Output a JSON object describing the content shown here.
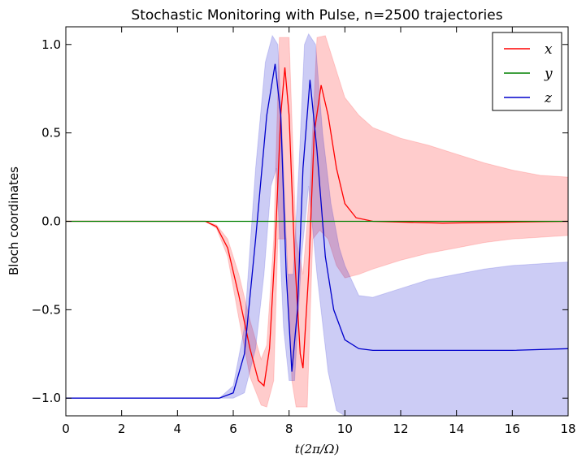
{
  "chart_data": {
    "type": "line",
    "title": "Stochastic Monitoring with Pulse, n=2500 trajectories",
    "xlabel": "t(2π/Ω)",
    "ylabel": "Bloch coordinates",
    "xlim": [
      0,
      18
    ],
    "ylim": [
      -1.1,
      1.1
    ],
    "x_ticks": [
      "0",
      "2",
      "4",
      "6",
      "8",
      "10",
      "12",
      "14",
      "16",
      "18"
    ],
    "y_ticks": [
      "1.0",
      "0.5",
      "0.0",
      "−0.5",
      "−1.0"
    ],
    "legend_position": "top-right",
    "series": [
      {
        "name": "x",
        "color": "#ff0000",
        "points": [
          [
            0,
            0.0
          ],
          [
            5.0,
            0.0
          ],
          [
            5.4,
            -0.03
          ],
          [
            5.8,
            -0.15
          ],
          [
            6.2,
            -0.42
          ],
          [
            6.6,
            -0.72
          ],
          [
            6.9,
            -0.9
          ],
          [
            7.1,
            -0.93
          ],
          [
            7.3,
            -0.72
          ],
          [
            7.5,
            -0.15
          ],
          [
            7.7,
            0.6
          ],
          [
            7.85,
            0.87
          ],
          [
            8.0,
            0.6
          ],
          [
            8.2,
            -0.2
          ],
          [
            8.4,
            -0.75
          ],
          [
            8.5,
            -0.83
          ],
          [
            8.7,
            -0.3
          ],
          [
            8.9,
            0.5
          ],
          [
            9.15,
            0.77
          ],
          [
            9.4,
            0.6
          ],
          [
            9.7,
            0.3
          ],
          [
            10.0,
            0.1
          ],
          [
            10.4,
            0.02
          ],
          [
            11.0,
            0.0
          ],
          [
            13.5,
            -0.01
          ],
          [
            18,
            0.0
          ]
        ],
        "band_upper": [
          [
            0,
            0.0
          ],
          [
            5.0,
            0.0
          ],
          [
            5.4,
            -0.02
          ],
          [
            5.8,
            -0.1
          ],
          [
            6.2,
            -0.3
          ],
          [
            6.6,
            -0.56
          ],
          [
            7.0,
            -0.78
          ],
          [
            7.2,
            -0.7
          ],
          [
            7.45,
            -0.1
          ],
          [
            7.65,
            1.04
          ],
          [
            8.0,
            1.04
          ],
          [
            8.25,
            -0.1
          ],
          [
            8.5,
            -0.3
          ],
          [
            8.75,
            0.2
          ],
          [
            9.0,
            1.04
          ],
          [
            9.3,
            1.05
          ],
          [
            9.7,
            0.85
          ],
          [
            10.0,
            0.7
          ],
          [
            10.5,
            0.6
          ],
          [
            11.0,
            0.53
          ],
          [
            12.0,
            0.47
          ],
          [
            13.0,
            0.43
          ],
          [
            14.0,
            0.38
          ],
          [
            15.0,
            0.33
          ],
          [
            16.0,
            0.29
          ],
          [
            17.0,
            0.26
          ],
          [
            18,
            0.25
          ]
        ],
        "band_lower": [
          [
            0,
            0.0
          ],
          [
            5.0,
            0.0
          ],
          [
            5.4,
            -0.04
          ],
          [
            5.8,
            -0.2
          ],
          [
            6.2,
            -0.55
          ],
          [
            6.6,
            -0.88
          ],
          [
            7.0,
            -1.04
          ],
          [
            7.2,
            -1.05
          ],
          [
            7.45,
            -0.9
          ],
          [
            7.6,
            -0.1
          ],
          [
            7.9,
            -0.1
          ],
          [
            8.1,
            -0.9
          ],
          [
            8.25,
            -1.05
          ],
          [
            8.65,
            -1.05
          ],
          [
            8.85,
            -0.1
          ],
          [
            9.1,
            -0.05
          ],
          [
            9.4,
            -0.1
          ],
          [
            9.7,
            -0.25
          ],
          [
            10.0,
            -0.32
          ],
          [
            10.5,
            -0.3
          ],
          [
            11.0,
            -0.27
          ],
          [
            12.0,
            -0.22
          ],
          [
            13.0,
            -0.18
          ],
          [
            14.0,
            -0.15
          ],
          [
            15.0,
            -0.12
          ],
          [
            16.0,
            -0.1
          ],
          [
            17.0,
            -0.09
          ],
          [
            18,
            -0.08
          ]
        ]
      },
      {
        "name": "y",
        "color": "#008000",
        "points": [
          [
            0,
            0.0
          ],
          [
            18,
            0.0
          ]
        ]
      },
      {
        "name": "z",
        "color": "#0000cc",
        "points": [
          [
            0,
            -1.0
          ],
          [
            5.5,
            -1.0
          ],
          [
            6.0,
            -0.97
          ],
          [
            6.4,
            -0.75
          ],
          [
            6.8,
            -0.1
          ],
          [
            7.2,
            0.6
          ],
          [
            7.5,
            0.89
          ],
          [
            7.7,
            0.6
          ],
          [
            7.9,
            -0.3
          ],
          [
            8.1,
            -0.85
          ],
          [
            8.3,
            -0.5
          ],
          [
            8.5,
            0.3
          ],
          [
            8.75,
            0.8
          ],
          [
            9.0,
            0.4
          ],
          [
            9.3,
            -0.2
          ],
          [
            9.6,
            -0.5
          ],
          [
            10.0,
            -0.67
          ],
          [
            10.5,
            -0.72
          ],
          [
            11.0,
            -0.73
          ],
          [
            12.0,
            -0.73
          ],
          [
            14.0,
            -0.73
          ],
          [
            16.0,
            -0.73
          ],
          [
            18,
            -0.72
          ]
        ],
        "band_upper": [
          [
            0,
            -1.0
          ],
          [
            5.5,
            -1.0
          ],
          [
            6.0,
            -0.93
          ],
          [
            6.4,
            -0.6
          ],
          [
            6.8,
            0.3
          ],
          [
            7.15,
            0.9
          ],
          [
            7.4,
            1.05
          ],
          [
            7.6,
            1.0
          ],
          [
            7.75,
            0.5
          ],
          [
            7.95,
            -0.3
          ],
          [
            8.15,
            -0.3
          ],
          [
            8.35,
            0.3
          ],
          [
            8.55,
            1.0
          ],
          [
            8.7,
            1.06
          ],
          [
            8.95,
            1.0
          ],
          [
            9.2,
            0.5
          ],
          [
            9.5,
            0.1
          ],
          [
            9.8,
            -0.15
          ],
          [
            10.0,
            -0.25
          ],
          [
            10.5,
            -0.42
          ],
          [
            11.0,
            -0.43
          ],
          [
            12.0,
            -0.38
          ],
          [
            13.0,
            -0.33
          ],
          [
            14.0,
            -0.3
          ],
          [
            15.0,
            -0.27
          ],
          [
            16.0,
            -0.25
          ],
          [
            17.0,
            -0.24
          ],
          [
            18,
            -0.23
          ]
        ],
        "band_lower": [
          [
            0,
            -1.0
          ],
          [
            5.5,
            -1.0
          ],
          [
            6.0,
            -1.0
          ],
          [
            6.4,
            -0.97
          ],
          [
            6.8,
            -0.72
          ],
          [
            7.1,
            -0.3
          ],
          [
            7.35,
            0.2
          ],
          [
            7.55,
            0.3
          ],
          [
            7.8,
            -0.6
          ],
          [
            8.0,
            -0.9
          ],
          [
            8.2,
            -0.9
          ],
          [
            8.45,
            -0.2
          ],
          [
            8.7,
            0.2
          ],
          [
            9.0,
            -0.3
          ],
          [
            9.4,
            -0.85
          ],
          [
            9.7,
            -1.07
          ],
          [
            10.0,
            -1.1
          ],
          [
            18,
            -1.1
          ]
        ]
      }
    ]
  }
}
